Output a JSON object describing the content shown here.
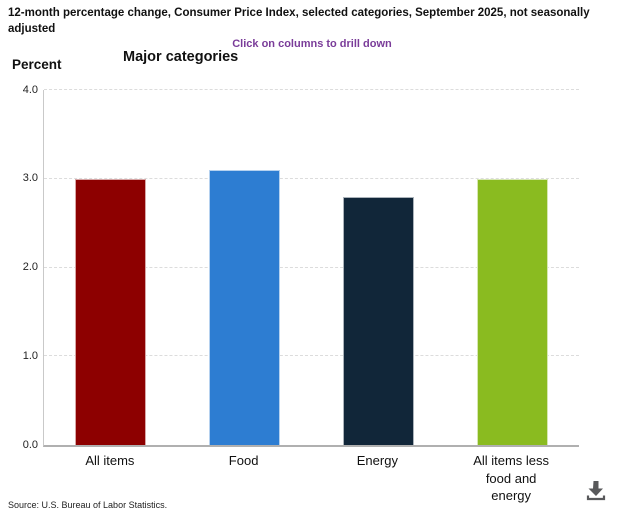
{
  "header": {
    "title": "12-month percentage change, Consumer Price Index, selected categories, September 2025, not seasonally adjusted",
    "subtitle": "Click on columns to drill down",
    "subtitle_color": "#7A3C99"
  },
  "chart_data": {
    "type": "bar",
    "title": "Major categories",
    "ylabel": "Percent",
    "xlabel": "",
    "categories": [
      "All items",
      "Food",
      "Energy",
      "All items less food and energy"
    ],
    "values": [
      3.0,
      3.1,
      2.8,
      3.0
    ],
    "colors": [
      "#8D0000",
      "#2D7DD2",
      "#112639",
      "#8ABB20"
    ],
    "ylim": [
      0,
      4
    ],
    "yticks": [
      0,
      1,
      2,
      3,
      4
    ],
    "ytick_labels": [
      "0.0",
      "1.0",
      "2.0",
      "3.0",
      "4.0"
    ],
    "grid": "horizontal-dashed",
    "legend": "none",
    "axis_colors": {
      "grid": "#dcdcdc",
      "y_axis_line": "#c9c9c9",
      "x_axis_line": "#b0b0b0"
    }
  },
  "footer": {
    "source": "Source: U.S. Bureau of Labor Statistics."
  },
  "icons": {
    "download": "download-icon"
  }
}
